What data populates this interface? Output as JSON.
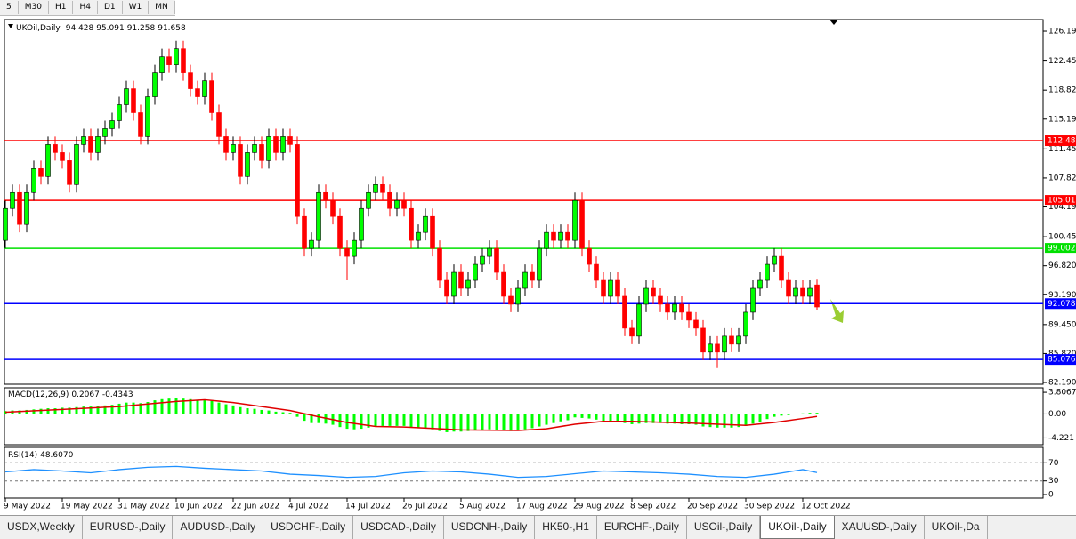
{
  "toolbar": {
    "timeframes": [
      "5",
      "M30",
      "H1",
      "H4",
      "D1",
      "W1",
      "MN"
    ]
  },
  "tabs": {
    "items": [
      "USDX,Weekly",
      "EURUSD-,Daily",
      "AUDUSD-,Daily",
      "USDCHF-,Daily",
      "USDCAD-,Daily",
      "USDCNH-,Daily",
      "HK50-,H1",
      "EURCHF-,Daily",
      "USOil-,Daily",
      "UKOil-,Daily",
      "XAUUSD-,Daily",
      "UKOil-,Da"
    ],
    "active": 9
  },
  "chart_data": {
    "type": "candlestick",
    "symbol": "UKOil,Daily",
    "up_color": "#00ff00",
    "down_color": "#ff0000",
    "candles": [
      [
        100,
        105,
        99,
        104
      ],
      [
        104,
        107,
        103,
        106
      ],
      [
        106,
        107,
        101,
        102
      ],
      [
        102,
        107,
        101,
        106
      ],
      [
        106,
        110,
        105,
        109
      ],
      [
        109,
        110,
        107,
        108
      ],
      [
        108,
        113,
        107,
        112
      ],
      [
        112,
        113,
        110,
        111
      ],
      [
        111,
        112,
        109,
        110
      ],
      [
        110,
        111,
        106,
        107
      ],
      [
        107,
        113,
        106,
        112
      ],
      [
        112,
        114,
        111,
        113
      ],
      [
        113,
        114,
        110,
        111
      ],
      [
        111,
        114,
        110,
        113
      ],
      [
        113,
        115,
        112,
        114
      ],
      [
        114,
        116,
        113,
        115
      ],
      [
        115,
        118,
        114,
        117
      ],
      [
        117,
        120,
        116,
        119
      ],
      [
        119,
        120,
        115,
        116
      ],
      [
        116,
        117,
        112,
        113
      ],
      [
        113,
        119,
        112,
        118
      ],
      [
        118,
        122,
        117,
        121
      ],
      [
        121,
        124,
        120,
        123
      ],
      [
        123,
        124,
        121,
        122
      ],
      [
        122,
        125,
        121,
        124
      ],
      [
        124,
        125,
        120,
        121
      ],
      [
        121,
        122,
        118,
        119
      ],
      [
        119,
        120,
        117,
        118
      ],
      [
        118,
        121,
        117,
        120
      ],
      [
        120,
        121,
        115,
        116
      ],
      [
        116,
        117,
        112,
        113
      ],
      [
        113,
        114,
        110,
        111
      ],
      [
        111,
        113,
        110,
        112
      ],
      [
        112,
        113,
        107,
        108
      ],
      [
        108,
        112,
        107,
        111
      ],
      [
        111,
        113,
        110,
        112
      ],
      [
        112,
        113,
        109,
        110
      ],
      [
        110,
        114,
        109,
        113
      ],
      [
        113,
        114,
        110,
        111
      ],
      [
        111,
        114,
        110,
        113
      ],
      [
        113,
        114,
        111,
        112
      ],
      [
        112,
        113,
        102,
        103
      ],
      [
        103,
        104,
        98,
        99
      ],
      [
        99,
        101,
        98,
        100
      ],
      [
        100,
        107,
        99,
        106
      ],
      [
        106,
        107,
        104,
        105
      ],
      [
        105,
        106,
        102,
        103
      ],
      [
        103,
        104,
        98,
        99
      ],
      [
        99,
        100,
        95,
        98
      ],
      [
        98,
        101,
        97,
        100
      ],
      [
        100,
        105,
        99,
        104
      ],
      [
        104,
        107,
        103,
        106
      ],
      [
        106,
        108,
        105,
        107
      ],
      [
        107,
        108,
        105,
        106
      ],
      [
        106,
        107,
        103,
        104
      ],
      [
        104,
        106,
        103,
        105
      ],
      [
        105,
        106,
        103,
        104
      ],
      [
        104,
        105,
        99,
        100
      ],
      [
        100,
        102,
        99,
        101
      ],
      [
        101,
        104,
        100,
        103
      ],
      [
        103,
        104,
        98,
        99
      ],
      [
        99,
        100,
        94,
        95
      ],
      [
        95,
        96,
        92,
        93
      ],
      [
        93,
        97,
        92,
        96
      ],
      [
        96,
        97,
        93,
        94
      ],
      [
        94,
        96,
        93,
        95
      ],
      [
        95,
        98,
        94,
        97
      ],
      [
        97,
        99,
        96,
        98
      ],
      [
        98,
        100,
        97,
        99
      ],
      [
        99,
        100,
        95,
        96
      ],
      [
        96,
        97,
        92,
        93
      ],
      [
        93,
        94,
        91,
        92
      ],
      [
        92,
        95,
        91,
        94
      ],
      [
        94,
        97,
        93,
        96
      ],
      [
        96,
        97,
        94,
        95
      ],
      [
        95,
        100,
        94,
        99
      ],
      [
        99,
        102,
        98,
        101
      ],
      [
        101,
        102,
        99,
        100
      ],
      [
        100,
        102,
        99,
        101
      ],
      [
        101,
        102,
        99,
        100
      ],
      [
        100,
        106,
        99,
        105
      ],
      [
        105,
        106,
        98,
        99
      ],
      [
        99,
        100,
        96,
        97
      ],
      [
        97,
        98,
        94,
        95
      ],
      [
        95,
        96,
        92,
        93
      ],
      [
        93,
        96,
        92,
        95
      ],
      [
        95,
        96,
        92,
        93
      ],
      [
        93,
        94,
        88,
        89
      ],
      [
        89,
        90,
        87,
        88
      ],
      [
        88,
        93,
        87,
        92
      ],
      [
        92,
        95,
        91,
        94
      ],
      [
        94,
        95,
        92,
        93
      ],
      [
        93,
        94,
        91,
        92
      ],
      [
        92,
        93,
        90,
        91
      ],
      [
        91,
        93,
        90,
        92
      ],
      [
        92,
        93,
        90,
        91
      ],
      [
        91,
        92,
        89,
        90
      ],
      [
        90,
        91,
        88,
        89
      ],
      [
        89,
        90,
        85,
        86
      ],
      [
        86,
        88,
        85,
        87
      ],
      [
        87,
        88,
        84,
        86
      ],
      [
        86,
        89,
        85,
        88
      ],
      [
        88,
        89,
        86,
        87
      ],
      [
        87,
        89,
        86,
        88
      ],
      [
        88,
        92,
        87,
        91
      ],
      [
        91,
        95,
        90,
        94
      ],
      [
        94,
        96,
        93,
        95
      ],
      [
        95,
        98,
        94,
        97
      ],
      [
        97,
        99,
        96,
        98
      ],
      [
        98,
        99,
        94,
        95
      ],
      [
        95,
        96,
        92,
        93
      ],
      [
        93,
        95,
        92,
        94
      ],
      [
        94,
        95,
        92,
        93
      ],
      [
        93,
        95,
        92,
        94
      ],
      [
        94.428,
        95.091,
        91.258,
        91.658
      ]
    ],
    "xticks": [
      {
        "value": 0,
        "label": "9 May 2022"
      },
      {
        "value": 8,
        "label": "19 May 2022"
      },
      {
        "value": 16,
        "label": "31 May 2022"
      },
      {
        "value": 24,
        "label": "10 Jun 2022"
      },
      {
        "value": 32,
        "label": "22 Jun 2022"
      },
      {
        "value": 40,
        "label": "4 Jul 2022"
      },
      {
        "value": 48,
        "label": "14 Jul 2022"
      },
      {
        "value": 56,
        "label": "26 Jul 2022"
      },
      {
        "value": 64,
        "label": "5 Aug 2022"
      },
      {
        "value": 72,
        "label": "17 Aug 2022"
      },
      {
        "value": 80,
        "label": "29 Aug 2022"
      },
      {
        "value": 88,
        "label": "8 Sep 2022"
      },
      {
        "value": 96,
        "label": "20 Sep 2022"
      },
      {
        "value": 104,
        "label": "30 Sep 2022"
      },
      {
        "value": 112,
        "label": "12 Oct 2022"
      }
    ],
    "ylim": [
      81.97,
      127.64
    ],
    "yticks": [
      {
        "value": 126.19,
        "label": "126.190"
      },
      {
        "value": 122.45,
        "label": "122.450"
      },
      {
        "value": 118.82,
        "label": "118.820"
      },
      {
        "value": 115.19,
        "label": "115.190"
      },
      {
        "value": 111.45,
        "label": "111.450"
      },
      {
        "value": 107.82,
        "label": "107.820"
      },
      {
        "value": 104.19,
        "label": "104.190"
      },
      {
        "value": 100.45,
        "label": "100.450"
      },
      {
        "value": 96.82,
        "label": "96.820"
      },
      {
        "value": 93.19,
        "label": "93.190"
      },
      {
        "value": 89.45,
        "label": "89.450"
      },
      {
        "value": 85.82,
        "label": "85.820"
      },
      {
        "value": 82.19,
        "label": "82.190"
      }
    ],
    "levels": [
      {
        "value": 112.488,
        "color": "#ff0000"
      },
      {
        "value": 105.019,
        "color": "#ff0000"
      },
      {
        "value": 99.002,
        "color": "#00e000"
      },
      {
        "value": 92.078,
        "color": "#0000ff"
      },
      {
        "value": 85.076,
        "color": "#0000ff"
      }
    ],
    "macd": {
      "label": "MACD(12,26,9)",
      "ylim": [
        -5.4,
        4.6
      ],
      "yticks": [
        3.8067,
        {
          "value": 0,
          "label": "0.00"
        },
        -4.221
      ],
      "histogram_color": "#00ff00",
      "histogram": [
        0.5,
        0.6,
        0.6,
        0.7,
        0.8,
        0.9,
        1.0,
        1.0,
        1.1,
        1.1,
        1.2,
        1.3,
        1.3,
        1.4,
        1.5,
        1.6,
        1.8,
        2.0,
        2.0,
        1.9,
        2.1,
        2.4,
        2.6,
        2.7,
        2.8,
        2.7,
        2.6,
        2.5,
        2.5,
        2.3,
        2.0,
        1.7,
        1.5,
        1.2,
        1.0,
        0.9,
        0.7,
        0.6,
        0.4,
        0.3,
        0.2,
        -0.5,
        -1.2,
        -1.6,
        -1.6,
        -1.7,
        -1.9,
        -2.3,
        -2.6,
        -2.7,
        -2.6,
        -2.4,
        -2.2,
        -2.1,
        -2.1,
        -2.1,
        -2.1,
        -2.4,
        -2.5,
        -2.5,
        -2.7,
        -3.0,
        -3.2,
        -3.1,
        -3.1,
        -3.0,
        -2.9,
        -2.8,
        -2.7,
        -2.8,
        -2.9,
        -3.0,
        -2.9,
        -2.7,
        -2.5,
        -2.2,
        -1.9,
        -1.6,
        -1.3,
        -1.1,
        -0.6,
        -0.7,
        -0.8,
        -1.0,
        -1.2,
        -1.2,
        -1.3,
        -1.6,
        -1.8,
        -1.7,
        -1.6,
        -1.6,
        -1.6,
        -1.7,
        -1.7,
        -1.8,
        -1.8,
        -1.9,
        -2.2,
        -2.3,
        -2.4,
        -2.4,
        -2.4,
        -2.3,
        -2.1,
        -1.7,
        -1.4,
        -0.9,
        -0.5,
        -0.3,
        -0.2,
        0.0,
        0.1,
        0.2,
        0.2067
      ],
      "signal": {
        "color": "#e00000",
        "x": [
          0,
          8,
          16,
          24,
          28,
          32,
          36,
          40,
          44,
          48,
          52,
          56,
          64,
          72,
          76,
          80,
          84,
          88,
          96,
          104,
          108,
          112,
          114
        ],
        "values": [
          0.3,
          0.8,
          1.3,
          2.2,
          2.5,
          2.0,
          1.3,
          0.6,
          -0.5,
          -1.5,
          -2.2,
          -2.3,
          -2.8,
          -2.9,
          -2.6,
          -1.8,
          -1.3,
          -1.3,
          -1.6,
          -2.0,
          -1.5,
          -0.8,
          -0.4343
        ]
      }
    },
    "rsi": {
      "label": "RSI(14)",
      "color": "#1e90ff",
      "ylim": [
        0,
        100
      ],
      "yticks": [
        70,
        30,
        0
      ],
      "x": [
        0,
        4,
        8,
        12,
        16,
        20,
        24,
        28,
        32,
        36,
        40,
        44,
        48,
        52,
        56,
        60,
        64,
        68,
        72,
        76,
        80,
        84,
        88,
        92,
        96,
        100,
        104,
        108,
        112,
        114
      ],
      "values": [
        50,
        55,
        52,
        48,
        55,
        60,
        62,
        58,
        55,
        52,
        45,
        42,
        38,
        40,
        48,
        52,
        50,
        45,
        38,
        40,
        46,
        52,
        50,
        48,
        45,
        40,
        38,
        45,
        55,
        48.607
      ],
      "value_labels": [
        null,
        null,
        null,
        null,
        null,
        null,
        null,
        null,
        null,
        null,
        null,
        null,
        null,
        null,
        null,
        null,
        null,
        null,
        null,
        null,
        null,
        null,
        null,
        null,
        null,
        null,
        null,
        null,
        null,
        "48.6070"
      ]
    }
  }
}
